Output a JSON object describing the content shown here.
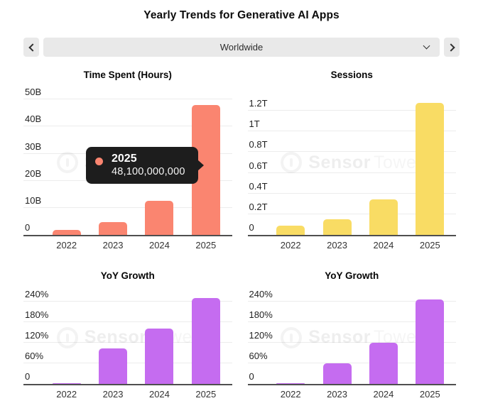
{
  "page": {
    "title": "Yearly Trends for Generative AI Apps"
  },
  "selector": {
    "value": "Worldwide",
    "icons": {
      "prev": "chevron-left",
      "next": "chevron-right",
      "open": "chevron-down"
    }
  },
  "watermark": {
    "text_primary": "Sensor",
    "text_secondary": "Tower"
  },
  "tooltip": {
    "year": "2025",
    "value": "48,100,000,000",
    "series_color": "#fa8570",
    "background": "#1d1d1d"
  },
  "colors": {
    "bar_salmon": "#fa8570",
    "bar_yellow": "#f9dc64",
    "bar_purple": "#c56cf0",
    "axis": "#4f4f4f",
    "gridline": "#ececec",
    "control_background": "#e9e9e9"
  },
  "chart_data": [
    {
      "type": "bar",
      "title": "Time Spent (Hours)",
      "categories": [
        "2022",
        "2023",
        "2024",
        "2025"
      ],
      "values": [
        1.9,
        4.6,
        12.6,
        48.1
      ],
      "unit": "billions of hours",
      "yticks": [
        {
          "v": 0,
          "label": "0"
        },
        {
          "v": 10,
          "label": "10B"
        },
        {
          "v": 20,
          "label": "20B"
        },
        {
          "v": 30,
          "label": "30B"
        },
        {
          "v": 40,
          "label": "40B"
        },
        {
          "v": 50,
          "label": "50B"
        }
      ],
      "ylim": [
        0,
        53.5
      ],
      "grid": true,
      "legend": "none",
      "bar_color": "#fa8570",
      "highlight": {
        "category": "2025",
        "value_label": "48,100,000,000"
      }
    },
    {
      "type": "bar",
      "title": "Sessions",
      "categories": [
        "2022",
        "2023",
        "2024",
        "2025"
      ],
      "values": [
        0.09,
        0.15,
        0.34,
        1.28
      ],
      "unit": "trillions of sessions",
      "yticks": [
        {
          "v": 0,
          "label": "0"
        },
        {
          "v": 0.2,
          "label": "0.2T"
        },
        {
          "v": 0.4,
          "label": "0.4T"
        },
        {
          "v": 0.6,
          "label": "0.6T"
        },
        {
          "v": 0.8,
          "label": "0.8T"
        },
        {
          "v": 1,
          "label": "1T"
        },
        {
          "v": 1.2,
          "label": "1.2T"
        }
      ],
      "ylim": [
        0,
        1.4
      ],
      "grid": true,
      "legend": "none",
      "bar_color": "#f9dc64"
    },
    {
      "type": "bar",
      "title": "YoY Growth",
      "categories": [
        "2022",
        "2023",
        "2024",
        "2025"
      ],
      "values": [
        3,
        103,
        160,
        250
      ],
      "unit": "percent",
      "yticks": [
        {
          "v": 0,
          "label": "0"
        },
        {
          "v": 60,
          "label": "60%"
        },
        {
          "v": 120,
          "label": "120%"
        },
        {
          "v": 180,
          "label": "180%"
        },
        {
          "v": 240,
          "label": "240%"
        }
      ],
      "ylim": [
        0,
        270
      ],
      "grid": true,
      "legend": "none",
      "bar_color": "#c56cf0"
    },
    {
      "type": "bar",
      "title": "YoY Growth",
      "categories": [
        "2022",
        "2023",
        "2024",
        "2025"
      ],
      "values": [
        3,
        60,
        120,
        245
      ],
      "unit": "percent",
      "yticks": [
        {
          "v": 0,
          "label": "0"
        },
        {
          "v": 60,
          "label": "60%"
        },
        {
          "v": 120,
          "label": "120%"
        },
        {
          "v": 180,
          "label": "180%"
        },
        {
          "v": 240,
          "label": "240%"
        }
      ],
      "ylim": [
        0,
        270
      ],
      "grid": true,
      "legend": "none",
      "bar_color": "#c56cf0"
    }
  ]
}
